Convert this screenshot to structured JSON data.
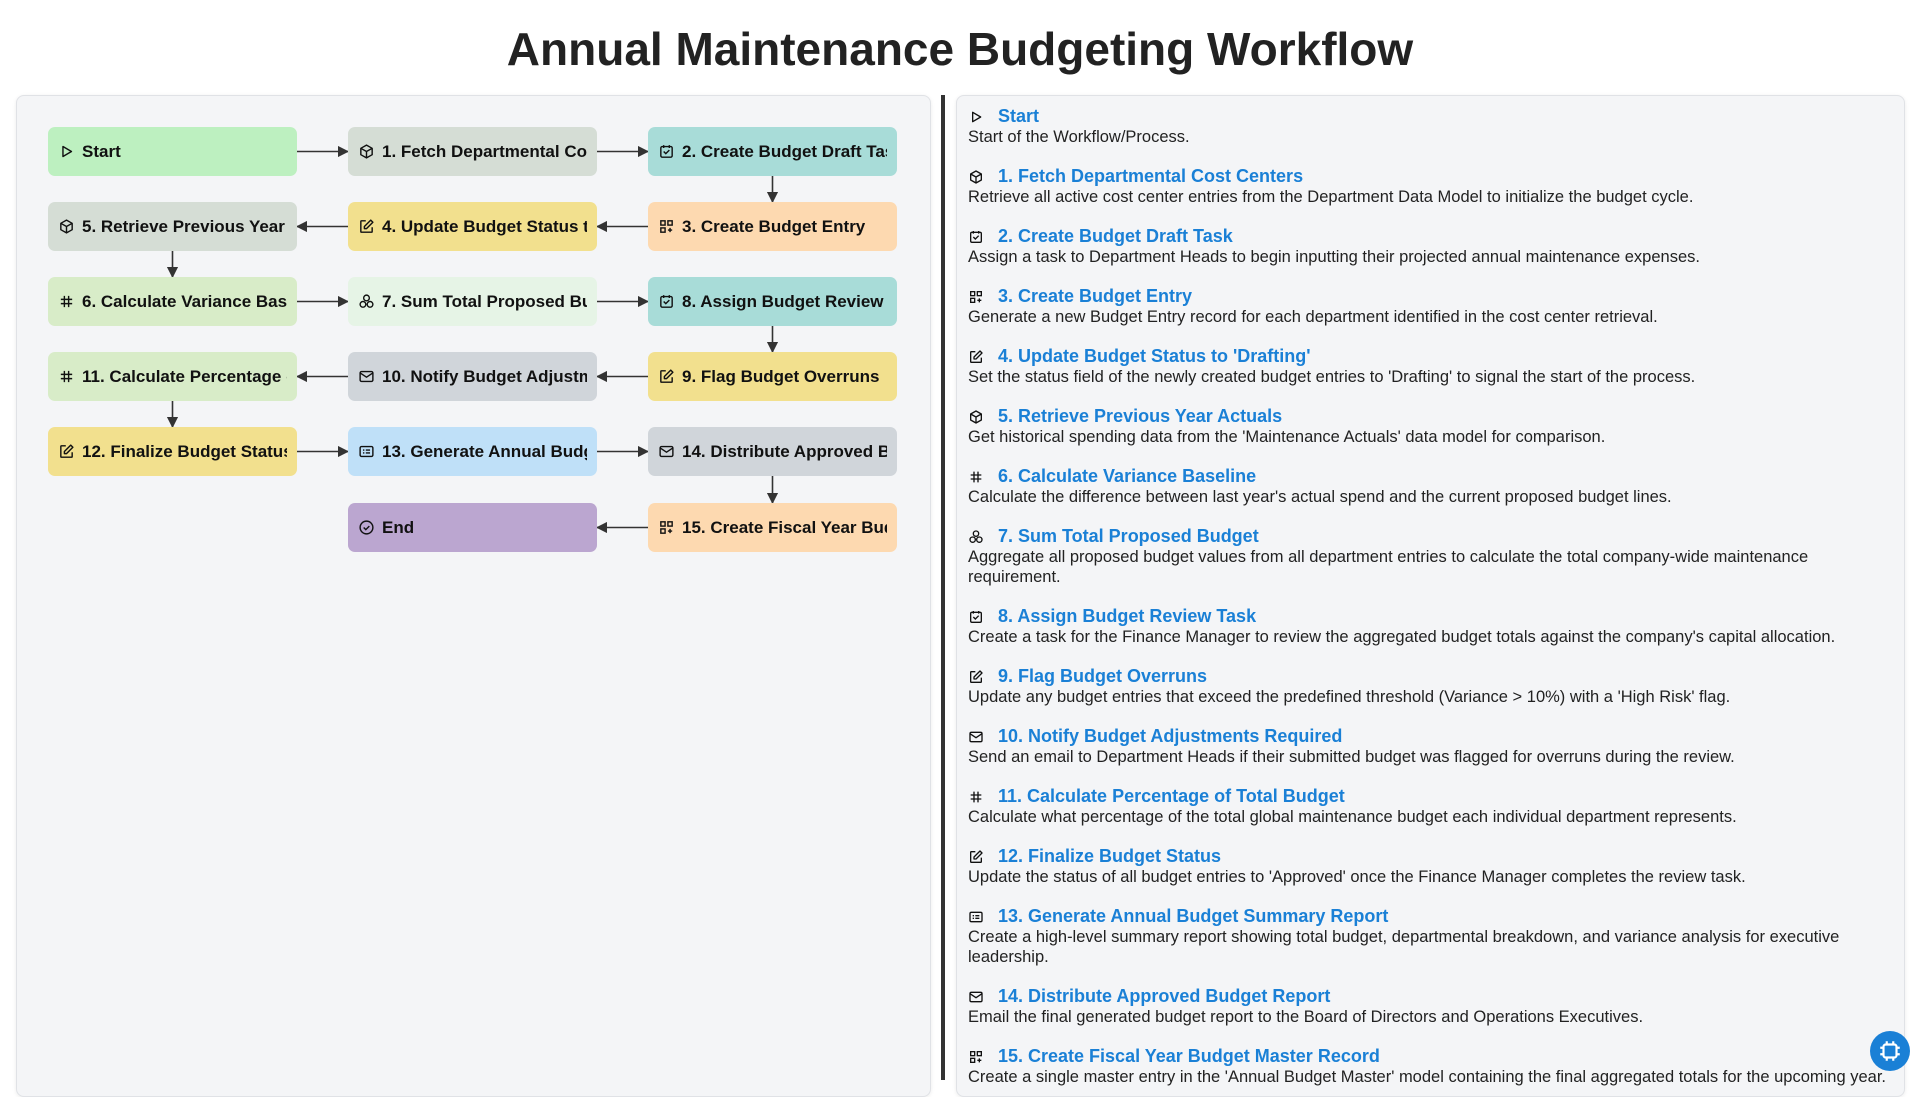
{
  "title": "Annual Maintenance Budgeting Workflow",
  "end_label": "End",
  "steps": [
    {
      "title": "Start",
      "description": "Start of the Workflow/Process."
    },
    {
      "title": "1. Fetch Departmental Cost Centers",
      "description": "Retrieve all active cost center entries from the Department Data Model to initialize the budget cycle."
    },
    {
      "title": "2. Create Budget Draft Task",
      "description": "Assign a task to Department Heads to begin inputting their projected annual maintenance expenses."
    },
    {
      "title": "3. Create Budget Entry",
      "description": "Generate a new Budget Entry record for each department identified in the cost center retrieval."
    },
    {
      "title": "4. Update Budget Status to 'Drafting'",
      "description": "Set the status field of the newly created budget entries to 'Drafting' to signal the start of the process."
    },
    {
      "title": "5. Retrieve Previous Year Actuals",
      "description": "Get historical spending data from the 'Maintenance Actuals' data model for comparison."
    },
    {
      "title": "6. Calculate Variance Baseline",
      "description": "Calculate the difference between last year's actual spend and the current proposed budget lines."
    },
    {
      "title": "7. Sum Total Proposed Budget",
      "description": "Aggregate all proposed budget values from all department entries to calculate the total company-wide maintenance requirement."
    },
    {
      "title": "8. Assign Budget Review Task",
      "description": "Create a task for the Finance Manager to review the aggregated budget totals against the company's capital allocation."
    },
    {
      "title": "9. Flag Budget Overruns",
      "description": "Update any budget entries that exceed the predefined threshold (Variance > 10%) with a 'High Risk' flag."
    },
    {
      "title": "10. Notify Budget Adjustments Required",
      "description": "Send an email to Department Heads if their submitted budget was flagged for overruns during the review."
    },
    {
      "title": "11. Calculate Percentage of Total Budget",
      "description": "Calculate what percentage of the total global maintenance budget each individual department represents."
    },
    {
      "title": "12. Finalize Budget Status",
      "description": "Update the status of all budget entries to 'Approved' once the Finance Manager completes the review task."
    },
    {
      "title": "13. Generate Annual Budget Summary Report",
      "description": "Create a high-level summary report showing total budget, departmental breakdown, and variance analysis for executive leadership."
    },
    {
      "title": "14. Distribute Approved Budget Report",
      "description": "Email the final generated budget report to the Board of Directors and Operations Executives."
    },
    {
      "title": "15. Create Fiscal Year Budget Master Record",
      "description": "Create a single master entry in the 'Annual Budget Master' model containing the final aggregated totals for the upcoming year."
    }
  ]
}
